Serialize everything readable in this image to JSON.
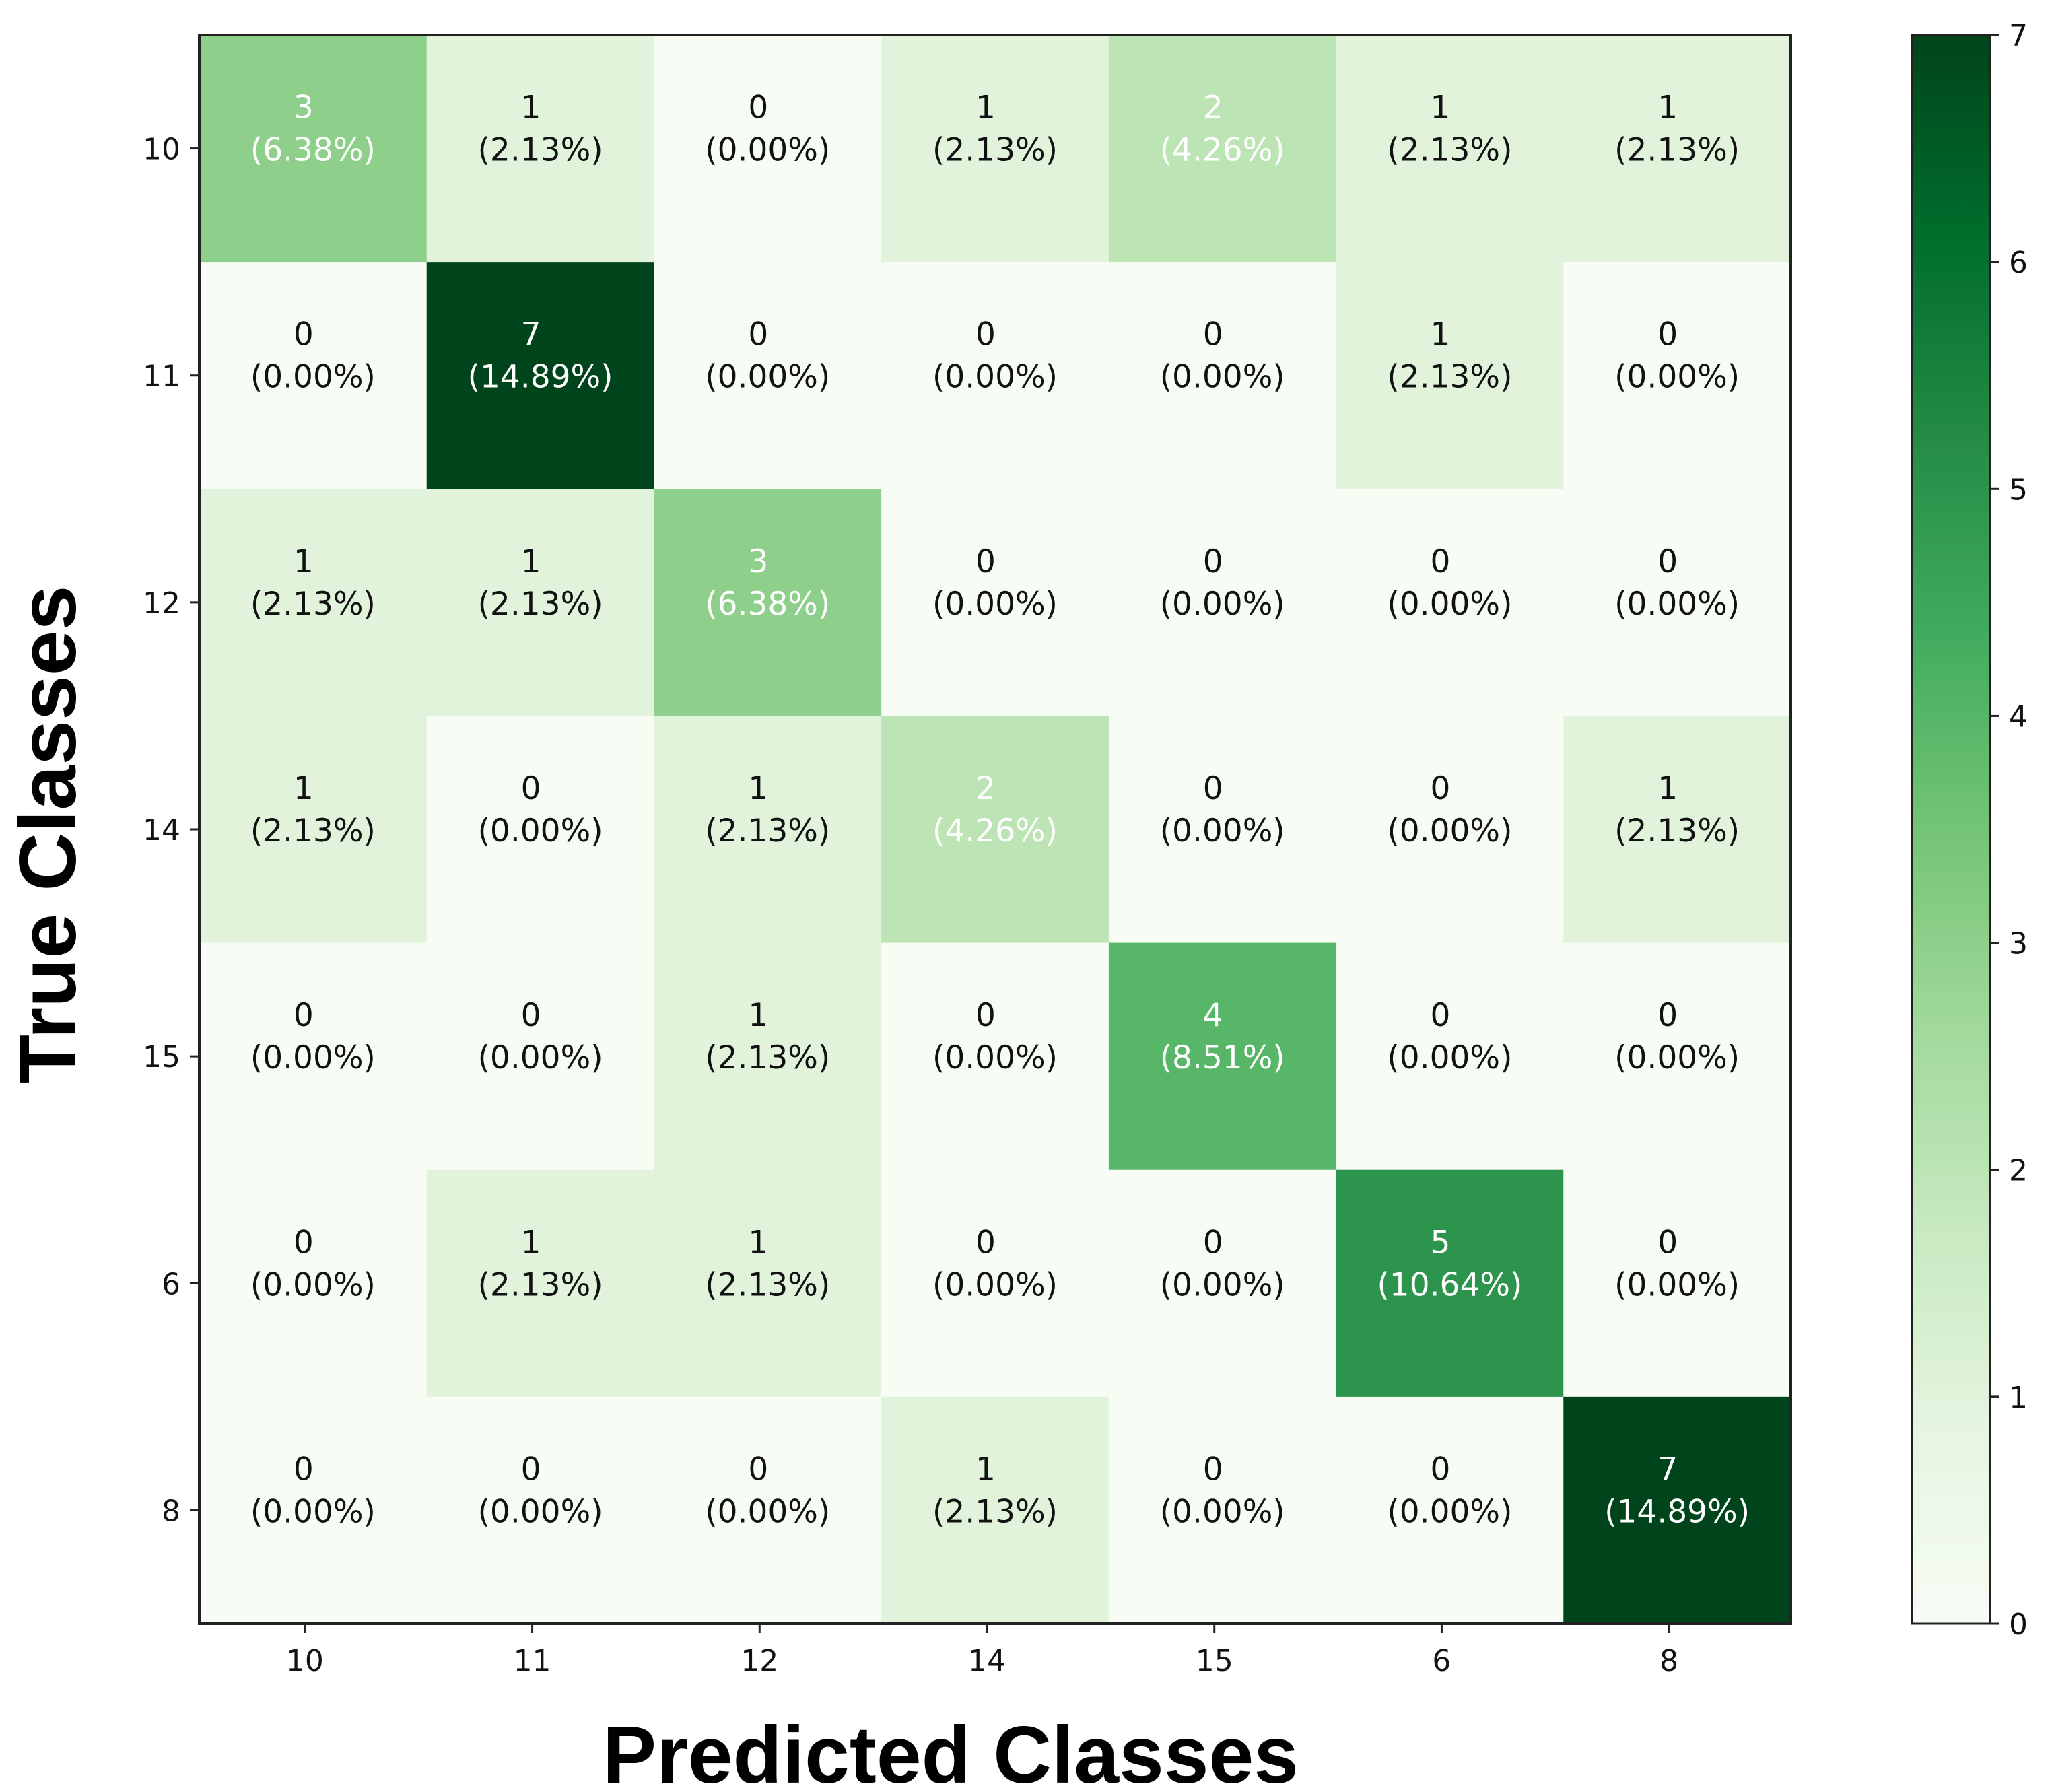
{
  "chart_data": {
    "type": "heatmap",
    "xlabel": "Predicted Classes",
    "ylabel": "True Classes",
    "x_categories": [
      "10",
      "11",
      "12",
      "14",
      "15",
      "6",
      "8"
    ],
    "y_categories": [
      "10",
      "11",
      "12",
      "14",
      "15",
      "6",
      "8"
    ],
    "matrix": [
      [
        3,
        1,
        0,
        1,
        2,
        1,
        1
      ],
      [
        0,
        7,
        0,
        0,
        0,
        1,
        0
      ],
      [
        1,
        1,
        3,
        0,
        0,
        0,
        0
      ],
      [
        1,
        0,
        1,
        2,
        0,
        0,
        1
      ],
      [
        0,
        0,
        1,
        0,
        4,
        0,
        0
      ],
      [
        0,
        1,
        1,
        0,
        0,
        5,
        0
      ],
      [
        0,
        0,
        0,
        1,
        0,
        0,
        7
      ]
    ],
    "percentages": [
      [
        "(6.38%)",
        "(2.13%)",
        "(0.00%)",
        "(2.13%)",
        "(4.26%)",
        "(2.13%)",
        "(2.13%)"
      ],
      [
        "(0.00%)",
        "(14.89%)",
        "(0.00%)",
        "(0.00%)",
        "(0.00%)",
        "(2.13%)",
        "(0.00%)"
      ],
      [
        "(2.13%)",
        "(2.13%)",
        "(6.38%)",
        "(0.00%)",
        "(0.00%)",
        "(0.00%)",
        "(0.00%)"
      ],
      [
        "(2.13%)",
        "(0.00%)",
        "(2.13%)",
        "(4.26%)",
        "(0.00%)",
        "(0.00%)",
        "(2.13%)"
      ],
      [
        "(0.00%)",
        "(0.00%)",
        "(2.13%)",
        "(0.00%)",
        "(8.51%)",
        "(0.00%)",
        "(0.00%)"
      ],
      [
        "(0.00%)",
        "(2.13%)",
        "(2.13%)",
        "(0.00%)",
        "(0.00%)",
        "(10.64%)",
        "(0.00%)"
      ],
      [
        "(0.00%)",
        "(0.00%)",
        "(0.00%)",
        "(2.13%)",
        "(0.00%)",
        "(0.00%)",
        "(14.89%)"
      ]
    ],
    "colorbar": {
      "range": [
        0,
        7
      ],
      "ticks": [
        0,
        1,
        2,
        3,
        4,
        5,
        6,
        7
      ],
      "colormap": "Greens",
      "colors": [
        "#f7fcf5",
        "#e5f5e0",
        "#c7e9c0",
        "#a1d99b",
        "#74c476",
        "#41ab5d",
        "#238b45",
        "#006d2c",
        "#00441b"
      ]
    },
    "text_colors": {
      "dark": "#111111",
      "light": "#ffffff"
    }
  }
}
